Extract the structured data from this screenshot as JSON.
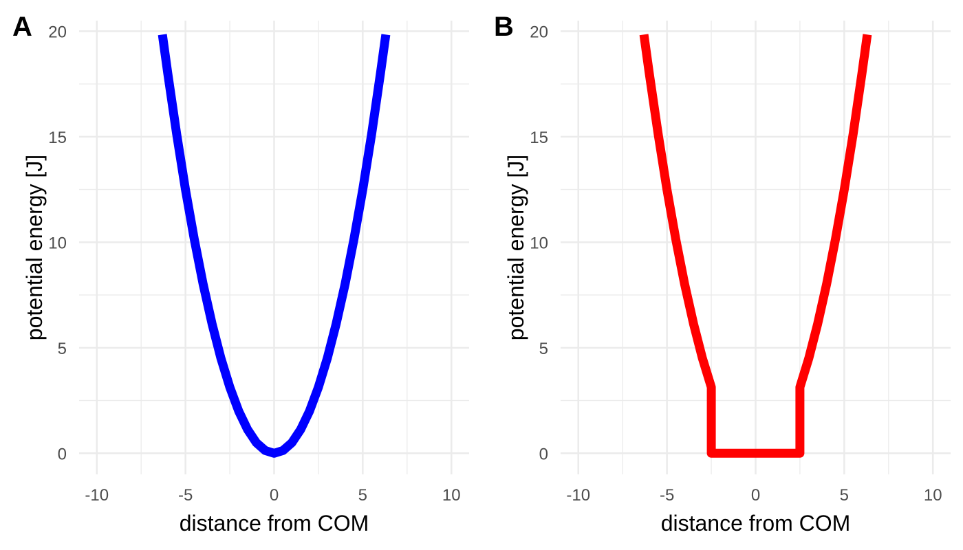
{
  "chart_data": [
    {
      "type": "line",
      "panel_label": "A",
      "xlabel": "distance from COM",
      "ylabel": "potential energy [J]",
      "xlim": [
        -11,
        11
      ],
      "ylim": [
        -1,
        20.5
      ],
      "x_ticks": [
        -10,
        -5,
        0,
        5,
        10
      ],
      "x_tick_labels": [
        "-10",
        "-5",
        "0",
        "5",
        "10"
      ],
      "y_ticks": [
        0,
        5,
        10,
        15,
        20
      ],
      "y_tick_labels": [
        "0",
        "5",
        "10",
        "15",
        "20"
      ],
      "grid": true,
      "series": [
        {
          "color": "#0000ff",
          "x": [
            -6.3,
            -6.0,
            -5.5,
            -5.0,
            -4.5,
            -4.0,
            -3.5,
            -3.0,
            -2.5,
            -2.0,
            -1.5,
            -1.0,
            -0.5,
            0,
            0.5,
            1.0,
            1.5,
            2.0,
            2.5,
            3.0,
            3.5,
            4.0,
            4.5,
            5.0,
            5.5,
            6.0,
            6.3
          ],
          "y": [
            19.84,
            18.0,
            15.13,
            12.5,
            10.13,
            8.0,
            6.13,
            4.5,
            3.13,
            2.0,
            1.13,
            0.5,
            0.13,
            0,
            0.13,
            0.5,
            1.13,
            2.0,
            3.13,
            4.5,
            6.13,
            8.0,
            10.13,
            12.5,
            15.13,
            18.0,
            19.84
          ]
        }
      ]
    },
    {
      "type": "line",
      "panel_label": "B",
      "xlabel": "distance from COM",
      "ylabel": "potential energy [J]",
      "xlim": [
        -11,
        11
      ],
      "ylim": [
        -1,
        20.5
      ],
      "x_ticks": [
        -10,
        -5,
        0,
        5,
        10
      ],
      "x_tick_labels": [
        "-10",
        "-5",
        "0",
        "5",
        "10"
      ],
      "y_ticks": [
        0,
        5,
        10,
        15,
        20
      ],
      "y_tick_labels": [
        "0",
        "5",
        "10",
        "15",
        "20"
      ],
      "grid": true,
      "series": [
        {
          "color": "#ff0000",
          "x": [
            -6.3,
            -6.0,
            -5.5,
            -5.0,
            -4.5,
            -4.0,
            -3.5,
            -3.0,
            -2.5,
            -2.5,
            2.5,
            2.5,
            3.0,
            3.5,
            4.0,
            4.5,
            5.0,
            5.5,
            6.0,
            6.3
          ],
          "y": [
            19.84,
            18.0,
            15.13,
            12.5,
            10.13,
            8.0,
            6.13,
            4.5,
            3.13,
            0,
            0,
            3.13,
            4.5,
            6.13,
            8.0,
            10.13,
            12.5,
            15.13,
            18.0,
            19.84
          ]
        }
      ]
    }
  ]
}
